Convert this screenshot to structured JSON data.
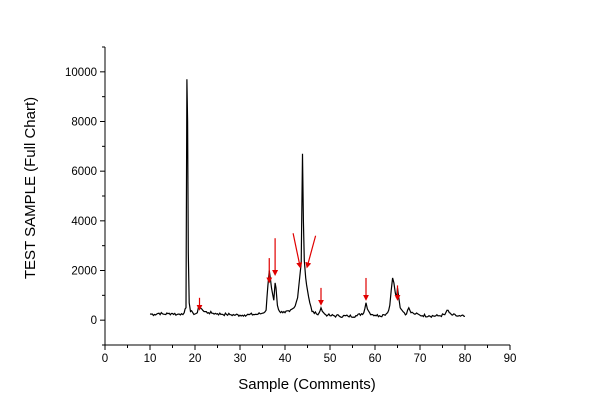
{
  "chart_data": {
    "type": "line",
    "xlabel": "Sample (Comments)",
    "ylabel": "TEST SAMPLE (Full Chart)",
    "xlim": [
      0,
      90
    ],
    "ylim": [
      -1000,
      11000
    ],
    "xticks": [
      0,
      10,
      20,
      30,
      40,
      50,
      60,
      70,
      80,
      90
    ],
    "yticks": [
      0,
      2000,
      4000,
      6000,
      8000,
      10000
    ],
    "grid": false,
    "line_color": "#000000",
    "annotation_color": "#e00000",
    "series": [
      {
        "x": [
          10,
          11,
          12,
          13,
          14,
          15,
          16,
          17,
          17.6,
          18.0,
          18.2,
          18.35,
          18.5,
          18.7,
          19.0,
          19.5,
          20,
          20.5,
          21.0,
          21.5,
          22,
          23,
          24,
          25,
          26,
          27,
          28,
          29,
          30,
          31,
          32,
          33,
          34,
          35,
          35.8,
          36.2,
          36.5,
          36.8,
          37.0,
          37.2,
          37.5,
          37.8,
          38.0,
          38.3,
          38.8,
          39.5,
          40,
          41,
          42,
          42.8,
          43.3,
          43.6,
          43.9,
          44.1,
          44.3,
          44.6,
          45.0,
          45.5,
          46,
          47,
          47.6,
          48.0,
          48.3,
          48.8,
          49.5,
          50,
          52,
          54,
          56,
          57.5,
          58.0,
          58.3,
          58.8,
          59.5,
          60,
          61,
          62,
          62.8,
          63.3,
          63.6,
          63.9,
          64.2,
          64.5,
          64.8,
          65.0,
          65.3,
          65.6,
          66.0,
          66.5,
          67,
          67.5,
          68,
          68.5,
          69,
          70,
          72,
          74,
          75.5,
          76.0,
          76.5,
          77,
          78,
          79,
          80
        ],
        "y": [
          250,
          230,
          280,
          240,
          260,
          270,
          230,
          260,
          300,
          500,
          9700,
          8000,
          2700,
          700,
          350,
          300,
          250,
          300,
          600,
          450,
          350,
          300,
          280,
          260,
          240,
          230,
          220,
          210,
          200,
          210,
          220,
          230,
          240,
          280,
          400,
          1400,
          2000,
          1600,
          1300,
          1100,
          800,
          1500,
          1300,
          600,
          350,
          300,
          300,
          350,
          500,
          900,
          1800,
          2300,
          6700,
          4000,
          2400,
          1700,
          1200,
          700,
          350,
          250,
          300,
          500,
          350,
          250,
          200,
          180,
          170,
          160,
          180,
          300,
          700,
          450,
          300,
          220,
          200,
          180,
          220,
          300,
          600,
          1200,
          1700,
          1500,
          1100,
          900,
          1300,
          900,
          500,
          400,
          300,
          250,
          500,
          300,
          280,
          250,
          200,
          180,
          170,
          220,
          400,
          300,
          220,
          180,
          160,
          150
        ]
      }
    ]
  }
}
